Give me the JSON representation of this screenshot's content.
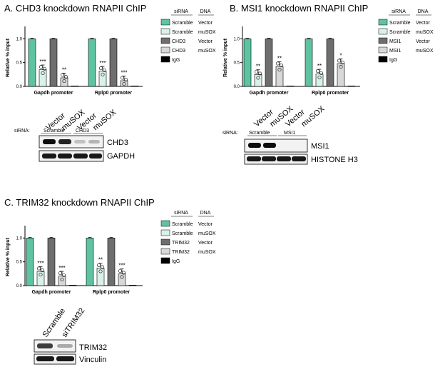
{
  "colors": {
    "scramble_vector": "#5ec3a0",
    "scramble_musox": "#d9f2e8",
    "kd_vector": "#6e6e6e",
    "kd_musox": "#d8d8d8",
    "igg": "#000000"
  },
  "siRNA_header": "siRNA",
  "dna_header": "DNA",
  "chart_data": [
    {
      "type": "bar",
      "panel": "A.",
      "title": "CHD3 knockdown RNAPII ChIP",
      "ylabel": "Relative % input",
      "ylim": [
        0,
        1.2
      ],
      "yticks": [
        "0.0",
        "0.5",
        "1.0"
      ],
      "categories": [
        "Gapdh promoter",
        "Rplp0 promoter"
      ],
      "series": [
        {
          "name": "Scramble",
          "dna": "Vector",
          "values": [
            1.0,
            1.0
          ],
          "sig": [
            "",
            ""
          ]
        },
        {
          "name": "Scramble",
          "dna": "muSOX",
          "values": [
            0.35,
            0.32
          ],
          "sig": [
            "***",
            "***"
          ]
        },
        {
          "name": "CHD3",
          "dna": "Vector",
          "values": [
            1.0,
            1.0
          ],
          "sig": [
            "",
            ""
          ]
        },
        {
          "name": "CHD3",
          "dna": "muSOX",
          "values": [
            0.18,
            0.12
          ],
          "sig": [
            "**",
            "***"
          ]
        },
        {
          "name": "IgG",
          "dna": "",
          "values": [
            0.01,
            0.01
          ],
          "sig": [
            "",
            ""
          ]
        }
      ]
    },
    {
      "type": "bar",
      "panel": "B.",
      "title": "MSI1 knockdown RNAPII ChIP",
      "ylabel": "Relative % input",
      "ylim": [
        0,
        1.2
      ],
      "yticks": [
        "0.0",
        "0.5",
        "1.0"
      ],
      "categories": [
        "Gapdh promoter",
        "Rplp0 promoter"
      ],
      "series": [
        {
          "name": "Scramble",
          "dna": "Vector",
          "values": [
            1.0,
            1.0
          ],
          "sig": [
            "",
            ""
          ]
        },
        {
          "name": "Scramble",
          "dna": "muSOX",
          "values": [
            0.25,
            0.26
          ],
          "sig": [
            "**",
            "**"
          ]
        },
        {
          "name": "MSI1",
          "dna": "Vector",
          "values": [
            1.0,
            1.0
          ],
          "sig": [
            "",
            ""
          ]
        },
        {
          "name": "MSI1",
          "dna": "muSOX",
          "values": [
            0.42,
            0.48
          ],
          "sig": [
            "**",
            "*"
          ]
        },
        {
          "name": "IgG",
          "dna": "",
          "values": [
            0.01,
            0.01
          ],
          "sig": [
            "",
            ""
          ]
        }
      ]
    },
    {
      "type": "bar",
      "panel": "C.",
      "title": "TRIM32 knockdown RNAPII ChIP",
      "ylabel": "Relative % input",
      "ylim": [
        0,
        1.2
      ],
      "yticks": [
        "0.0",
        "0.5",
        "1.0"
      ],
      "categories": [
        "Gapdh promoter",
        "Rplp0 promoter"
      ],
      "series": [
        {
          "name": "Scramble",
          "dna": "Vector",
          "values": [
            1.0,
            1.0
          ],
          "sig": [
            "",
            ""
          ]
        },
        {
          "name": "Scramble",
          "dna": "muSOX",
          "values": [
            0.3,
            0.37
          ],
          "sig": [
            "***",
            "**"
          ]
        },
        {
          "name": "TRIM32",
          "dna": "Vector",
          "values": [
            1.0,
            1.0
          ],
          "sig": [
            "",
            ""
          ]
        },
        {
          "name": "TRIM32",
          "dna": "muSOX",
          "values": [
            0.2,
            0.25
          ],
          "sig": [
            "***",
            "***"
          ]
        },
        {
          "name": "IgG",
          "dna": "",
          "values": [
            0.01,
            0.01
          ],
          "sig": [
            "",
            ""
          ]
        }
      ]
    }
  ],
  "blots": [
    {
      "lane_labels": [
        "Vector",
        "muSOX",
        "Vector",
        "muSOX"
      ],
      "sirna_label": "siRNA:",
      "groups": [
        "Scramble",
        "CHD3"
      ],
      "rows": [
        "CHD3",
        "GAPDH"
      ]
    },
    {
      "lane_labels": [
        "Vector",
        "muSOX",
        "Vector",
        "muSOX"
      ],
      "sirna_label": "siRNA:",
      "groups": [
        "Scramble",
        "MSI1"
      ],
      "rows": [
        "MSI1",
        "HISTONE H3"
      ]
    },
    {
      "lane_labels": [
        "Scramble",
        "siTRIM32"
      ],
      "rows": [
        "TRIM32",
        "Vinculin"
      ]
    }
  ]
}
